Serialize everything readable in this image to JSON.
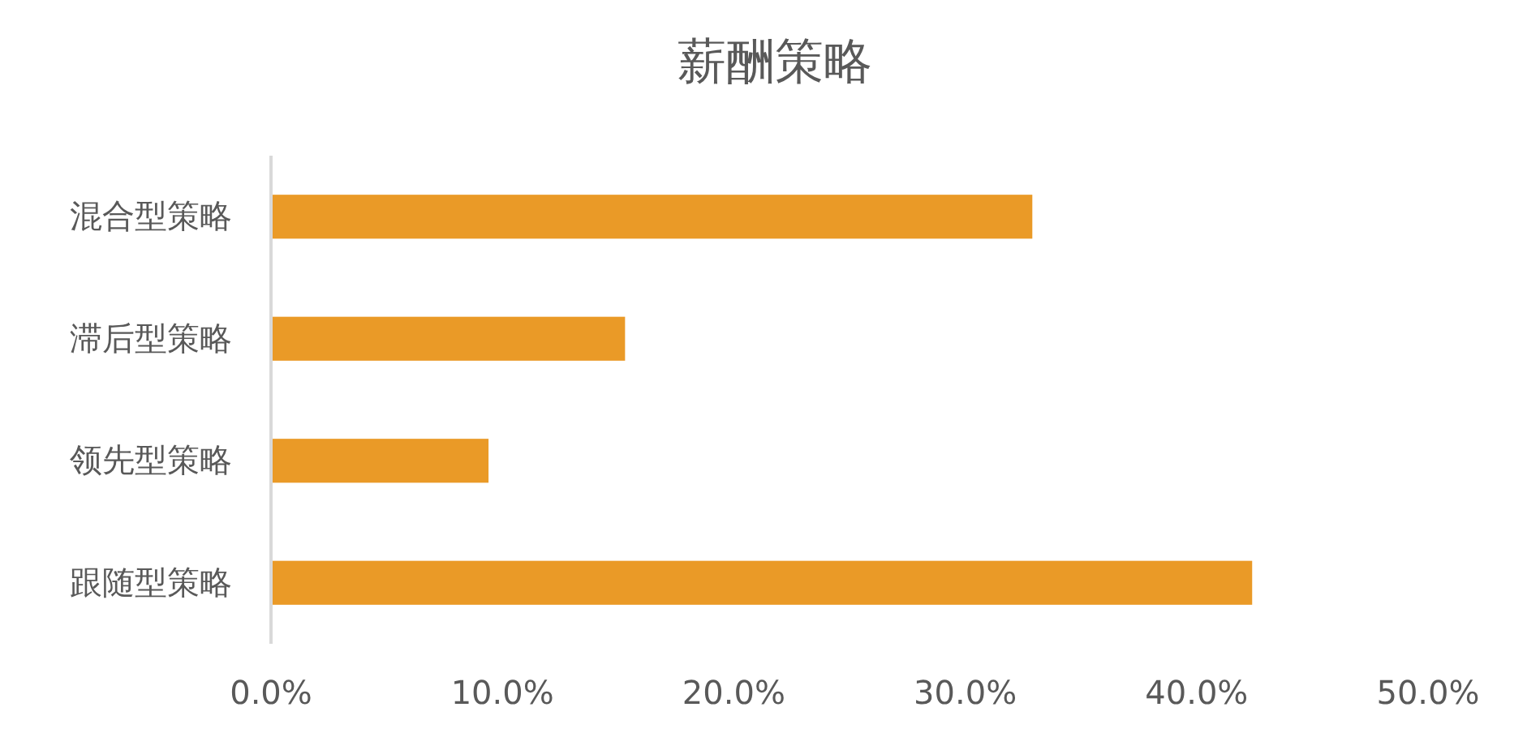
{
  "chart_data": {
    "type": "bar",
    "orientation": "horizontal",
    "title": "薪酬策略",
    "categories": [
      "混合型策略",
      "滞后型策略",
      "领先型策略",
      "跟随型策略"
    ],
    "values": [
      32.9,
      15.3,
      9.4,
      42.4
    ],
    "color": "#ea9a27",
    "xlim": [
      0,
      50
    ],
    "xticks": [
      {
        "value": 0,
        "label": "0.0%"
      },
      {
        "value": 10,
        "label": "10.0%"
      },
      {
        "value": 20,
        "label": "20.0%"
      },
      {
        "value": 30,
        "label": "30.0%"
      },
      {
        "value": 40,
        "label": "40.0%"
      },
      {
        "value": 50,
        "label": "50.0%"
      }
    ],
    "grid": false
  }
}
